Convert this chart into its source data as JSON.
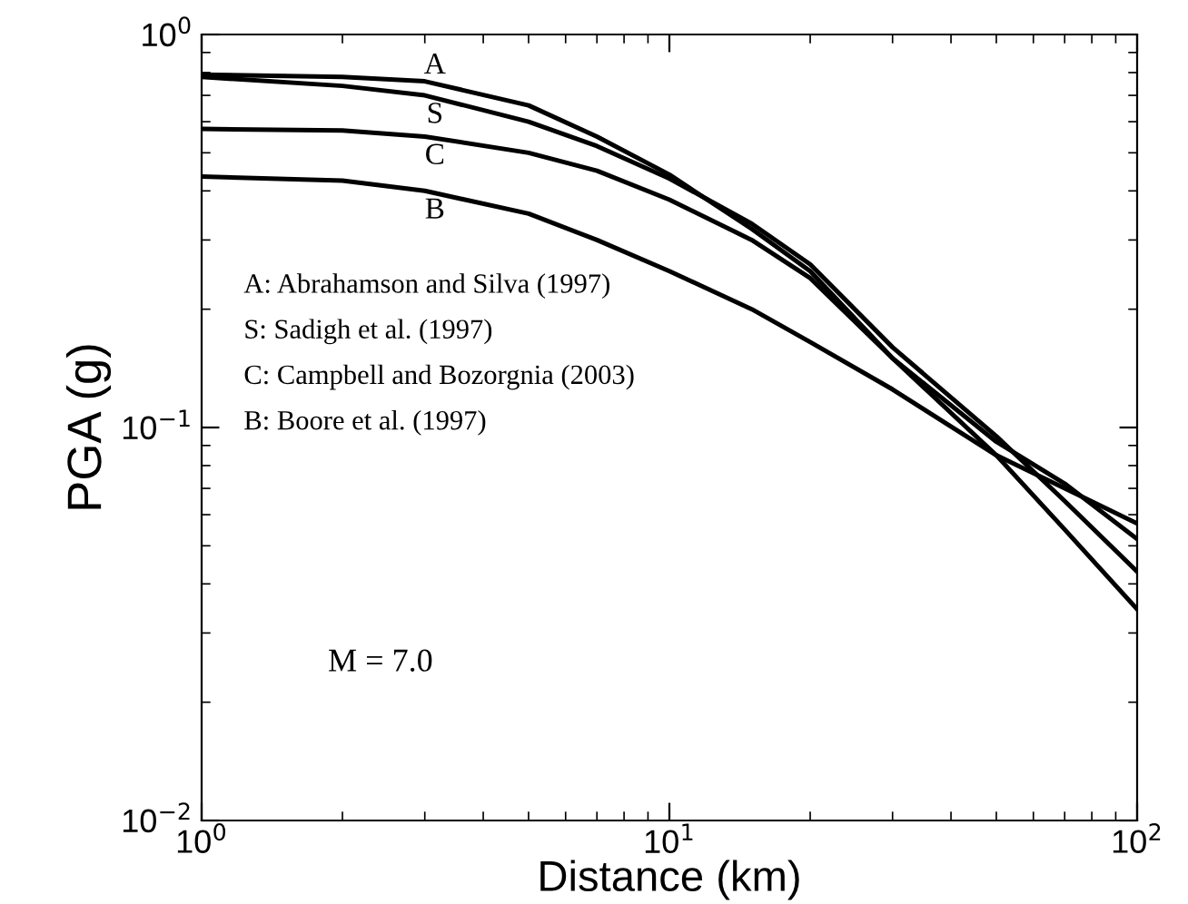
{
  "chart_data": {
    "type": "line",
    "log": "xy",
    "xlabel": "Distance (km)",
    "ylabel": "PGA (g)",
    "x": [
      1,
      2,
      3,
      5,
      7,
      10,
      15,
      20,
      30,
      50,
      70,
      100
    ],
    "xlim": [
      1,
      100
    ],
    "ylim": [
      0.01,
      1
    ],
    "xticks": [
      {
        "value": 1,
        "label": "10$^{0}$"
      },
      {
        "value": 10,
        "label": "10$^{1}$"
      },
      {
        "value": 100,
        "label": "10$^{2}$"
      }
    ],
    "yticks": [
      {
        "value": 0.01,
        "label": "10$^{−2}$"
      },
      {
        "value": 0.1,
        "label": "10$^{−1}$"
      },
      {
        "value": 1,
        "label": "10$^{0}$"
      }
    ],
    "grid": false,
    "marker": "none",
    "line_style": "solid",
    "series": [
      {
        "name": "A",
        "color": "#000000",
        "values": [
          0.79,
          0.78,
          0.76,
          0.66,
          0.55,
          0.44,
          0.32,
          0.25,
          0.15,
          0.085,
          0.055,
          0.0345
        ]
      },
      {
        "name": "S",
        "color": "#000000",
        "values": [
          0.78,
          0.74,
          0.7,
          0.6,
          0.52,
          0.43,
          0.33,
          0.26,
          0.16,
          0.095,
          0.065,
          0.043
        ]
      },
      {
        "name": "C",
        "color": "#000000",
        "values": [
          0.575,
          0.57,
          0.55,
          0.5,
          0.45,
          0.38,
          0.3,
          0.24,
          0.15,
          0.092,
          0.072,
          0.052
        ]
      },
      {
        "name": "B",
        "color": "#000000",
        "values": [
          0.435,
          0.425,
          0.4,
          0.35,
          0.3,
          0.25,
          0.2,
          0.165,
          0.125,
          0.085,
          0.07,
          0.057
        ]
      }
    ],
    "annotations": [
      "A: Abrahamson and Silva (1997)",
      "S: Sadigh et al. (1997)",
      "C: Campbell and Bozorgnia (2003)",
      "B: Boore et al. (1997)",
      "M = 7.0"
    ]
  }
}
